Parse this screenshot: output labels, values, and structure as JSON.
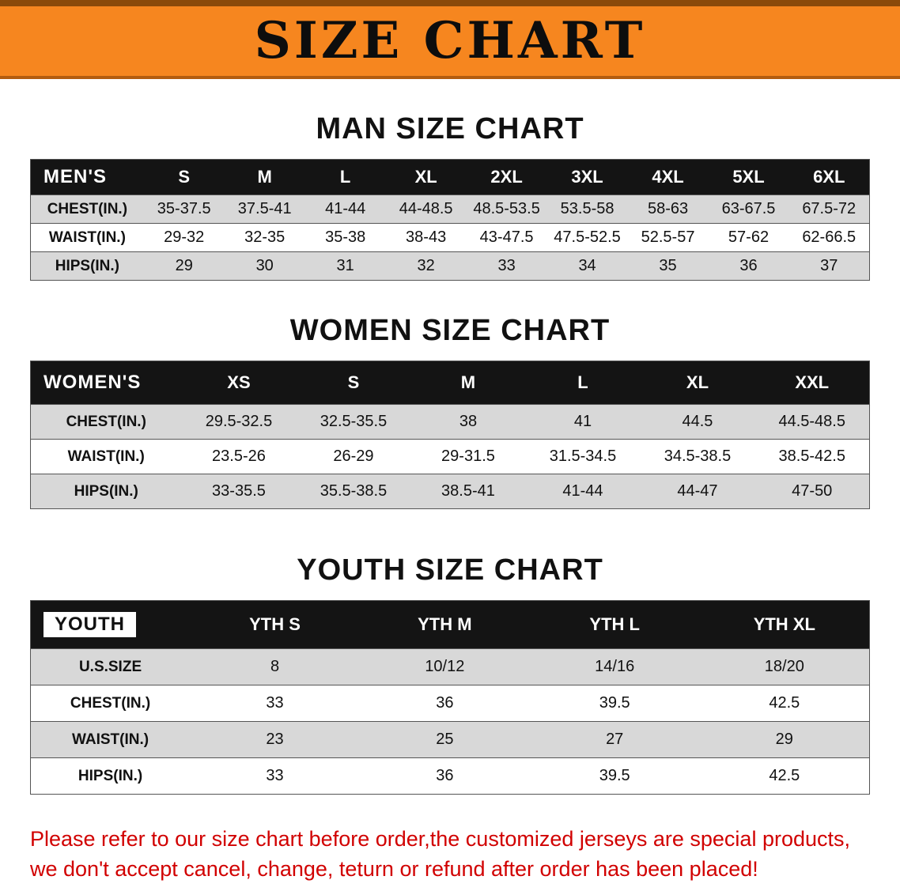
{
  "banner": {
    "title": "SIZE CHART",
    "bg_color": "#f6861f",
    "text_color": "#0d0d0d"
  },
  "colors": {
    "table_header_bg": "#141414",
    "table_header_text": "#ffffff",
    "row_shaded": "#d8d8d8",
    "disclaimer_text": "#d10000"
  },
  "chart_data": [
    {
      "type": "table",
      "title": "MAN SIZE CHART",
      "label_col_width": 13.5,
      "label_chip": false,
      "header": [
        "MEN'S",
        "S",
        "M",
        "L",
        "XL",
        "2XL",
        "3XL",
        "4XL",
        "5XL",
        "6XL"
      ],
      "rows": [
        [
          "CHEST(IN.)",
          "35-37.5",
          "37.5-41",
          "41-44",
          "44-48.5",
          "48.5-53.5",
          "53.5-58",
          "58-63",
          "63-67.5",
          "67.5-72"
        ],
        [
          "WAIST(IN.)",
          "29-32",
          "32-35",
          "35-38",
          "38-43",
          "43-47.5",
          "47.5-52.5",
          "52.5-57",
          "57-62",
          "62-66.5"
        ],
        [
          "HIPS(IN.)",
          "29",
          "30",
          "31",
          "32",
          "33",
          "34",
          "35",
          "36",
          "37"
        ]
      ]
    },
    {
      "type": "table",
      "title": "WOMEN SIZE CHART",
      "label_col_width": 18,
      "label_chip": false,
      "header": [
        "WOMEN'S",
        "XS",
        "S",
        "M",
        "L",
        "XL",
        "XXL"
      ],
      "rows": [
        [
          "CHEST(IN.)",
          "29.5-32.5",
          "32.5-35.5",
          "38",
          "41",
          "44.5",
          "44.5-48.5"
        ],
        [
          "WAIST(IN.)",
          "23.5-26",
          "26-29",
          "29-31.5",
          "31.5-34.5",
          "34.5-38.5",
          "38.5-42.5"
        ],
        [
          "HIPS(IN.)",
          "33-35.5",
          "35.5-38.5",
          "38.5-41",
          "41-44",
          "44-47",
          "47-50"
        ]
      ]
    },
    {
      "type": "table",
      "title": "YOUTH SIZE CHART",
      "label_col_width": 19,
      "label_chip": true,
      "header": [
        "YOUTH",
        "YTH S",
        "YTH M",
        "YTH L",
        "YTH XL"
      ],
      "rows": [
        [
          "U.S.SIZE",
          "8",
          "10/12",
          "14/16",
          "18/20"
        ],
        [
          "CHEST(IN.)",
          "33",
          "36",
          "39.5",
          "42.5"
        ],
        [
          "WAIST(IN.)",
          "23",
          "25",
          "27",
          "29"
        ],
        [
          "HIPS(IN.)",
          "33",
          "36",
          "39.5",
          "42.5"
        ]
      ]
    }
  ],
  "disclaimer": {
    "lines": [
      "Please refer to our size chart before order,the customized jerseys are special products,",
      "we don't accept cancel, change, teturn or refund after order has been placed!"
    ]
  }
}
